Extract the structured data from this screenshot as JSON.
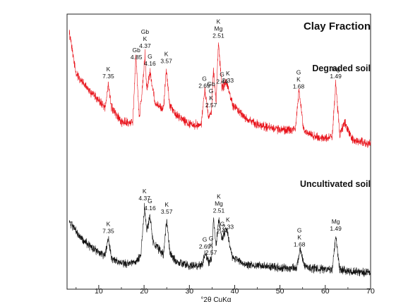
{
  "chart_data": {
    "type": "line",
    "title": "Clay Fraction",
    "xlabel": "°2θ CuKα",
    "ylabel": "",
    "xlim": [
      3,
      70
    ],
    "x_ticks": [
      10,
      20,
      30,
      40,
      50,
      60,
      70
    ],
    "grid": false,
    "series": [
      {
        "name": "Degraded soil",
        "color": "#e8141c",
        "x": [
          3.5,
          5,
          8,
          10,
          11.4,
          12.1,
          12.8,
          15,
          17.5,
          18.2,
          18.9,
          19.5,
          20.2,
          20.6,
          21.3,
          22.5,
          24.3,
          24.9,
          25.6,
          27,
          30,
          32.6,
          33.4,
          34.2,
          34.9,
          35.3,
          35.9,
          36.4,
          37.2,
          38.1,
          39.5,
          42,
          45,
          50,
          53.4,
          54.2,
          55.2,
          58,
          61.5,
          62.3,
          63.2,
          64.3,
          66,
          70
        ],
        "y": [
          0.96,
          0.64,
          0.5,
          0.43,
          0.38,
          0.56,
          0.38,
          0.26,
          0.26,
          0.78,
          0.3,
          0.46,
          0.8,
          0.5,
          0.66,
          0.4,
          0.36,
          0.68,
          0.4,
          0.32,
          0.24,
          0.24,
          0.52,
          0.3,
          0.34,
          0.68,
          0.42,
          0.88,
          0.52,
          0.58,
          0.4,
          0.3,
          0.24,
          0.2,
          0.2,
          0.52,
          0.2,
          0.14,
          0.14,
          0.56,
          0.16,
          0.26,
          0.12,
          0.09
        ]
      },
      {
        "name": "Uncultivated soil",
        "color": "#111111",
        "x": [
          3.5,
          4.5,
          6,
          8,
          10,
          11.4,
          12.1,
          12.8,
          15,
          18,
          19.3,
          20.1,
          20.6,
          21.3,
          22,
          24.3,
          25,
          25.7,
          27,
          30,
          32.8,
          33.5,
          34.3,
          34.9,
          35.3,
          35.9,
          36.5,
          37.2,
          38.2,
          39.5,
          42,
          45,
          50,
          53.6,
          54.4,
          55.5,
          58,
          61.5,
          62.3,
          63.2,
          66,
          70
        ],
        "y": [
          0.45,
          0.4,
          0.32,
          0.25,
          0.2,
          0.17,
          0.31,
          0.15,
          0.11,
          0.11,
          0.18,
          0.58,
          0.38,
          0.5,
          0.28,
          0.18,
          0.47,
          0.2,
          0.12,
          0.09,
          0.09,
          0.2,
          0.11,
          0.14,
          0.48,
          0.26,
          0.48,
          0.3,
          0.4,
          0.16,
          0.1,
          0.09,
          0.07,
          0.07,
          0.22,
          0.08,
          0.06,
          0.06,
          0.33,
          0.06,
          0.04,
          0.03
        ]
      }
    ],
    "annotations": [
      {
        "series": 0,
        "x": 12.1,
        "lines": [
          "K",
          "7.35"
        ]
      },
      {
        "series": 0,
        "x": 18.3,
        "lines": [
          "Gb",
          "4.85"
        ]
      },
      {
        "series": 0,
        "x": 20.2,
        "lines": [
          "Gb",
          "K",
          "4.37"
        ]
      },
      {
        "series": 0,
        "x": 21.3,
        "lines": [
          "G",
          "4.16"
        ]
      },
      {
        "series": 0,
        "x": 24.9,
        "lines": [
          "K",
          "3.57"
        ]
      },
      {
        "series": 0,
        "x": 33.3,
        "lines": [
          "G",
          "2.69"
        ]
      },
      {
        "series": 0,
        "x": 34.8,
        "lines": [
          "Gb",
          "G",
          "K",
          "2.57"
        ]
      },
      {
        "series": 0,
        "x": 36.4,
        "lines": [
          "K",
          "Mg",
          "2.51"
        ]
      },
      {
        "series": 0,
        "x": 37.2,
        "lines": [
          "G",
          "2.44"
        ]
      },
      {
        "series": 0,
        "x": 38.5,
        "lines": [
          "K",
          "2.33"
        ]
      },
      {
        "series": 0,
        "x": 54.1,
        "lines": [
          "G",
          "K",
          "1.68"
        ]
      },
      {
        "series": 0,
        "x": 62.3,
        "lines": [
          "Mg",
          "1.49"
        ]
      },
      {
        "series": 1,
        "x": 12.1,
        "lines": [
          "K",
          "7.35"
        ]
      },
      {
        "series": 1,
        "x": 20.1,
        "lines": [
          "K",
          "4.37"
        ]
      },
      {
        "series": 1,
        "x": 21.3,
        "lines": [
          "G",
          "4.16"
        ]
      },
      {
        "series": 1,
        "x": 25.0,
        "lines": [
          "K",
          "3.57"
        ]
      },
      {
        "series": 1,
        "x": 33.4,
        "lines": [
          "G",
          "2.69"
        ]
      },
      {
        "series": 1,
        "x": 34.8,
        "lines": [
          "G",
          "K",
          "2.57"
        ]
      },
      {
        "series": 1,
        "x": 36.5,
        "lines": [
          "K",
          "Mg",
          "2.51"
        ]
      },
      {
        "series": 1,
        "x": 37.3,
        "lines": [
          "G",
          "2.44"
        ]
      },
      {
        "series": 1,
        "x": 38.5,
        "lines": [
          "K",
          "2.33"
        ]
      },
      {
        "series": 1,
        "x": 54.3,
        "lines": [
          "G",
          "K",
          "1.68"
        ]
      },
      {
        "series": 1,
        "x": 62.3,
        "lines": [
          "Mg",
          "1.49"
        ]
      }
    ]
  }
}
